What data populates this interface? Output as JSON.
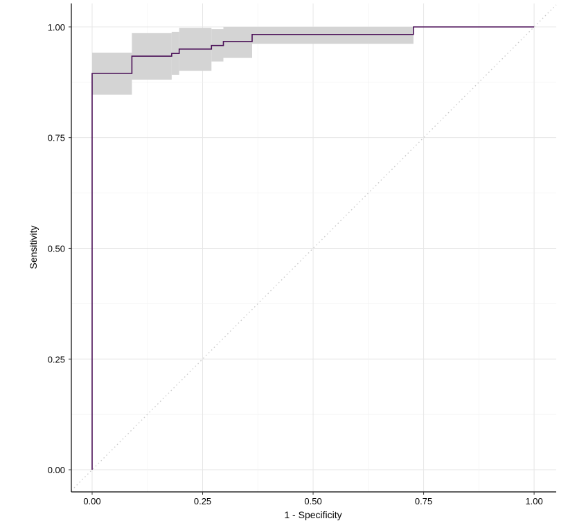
{
  "chart_data": {
    "type": "line",
    "title": "",
    "xlabel": "1 - Specificity",
    "ylabel": "Sensitivity",
    "xlim": [
      -0.047,
      1.05
    ],
    "ylim": [
      -0.05,
      1.053
    ],
    "grid": true,
    "x_ticks": [
      {
        "value": 0,
        "label": "0.00"
      },
      {
        "value": 0.25,
        "label": "0.25"
      },
      {
        "value": 0.5,
        "label": "0.50"
      },
      {
        "value": 0.75,
        "label": "0.75"
      },
      {
        "value": 1,
        "label": "1.00"
      }
    ],
    "y_ticks": [
      {
        "value": 0,
        "label": "0.00"
      },
      {
        "value": 0.25,
        "label": "0.25"
      },
      {
        "value": 0.5,
        "label": "0.50"
      },
      {
        "value": 0.75,
        "label": "0.75"
      },
      {
        "value": 1,
        "label": "1.00"
      }
    ],
    "roc_steps": [
      {
        "x": 0,
        "y": 0
      },
      {
        "x": 0,
        "y": 0.895
      },
      {
        "x": 0.09,
        "y": 0.934
      },
      {
        "x": 0.18,
        "y": 0.94
      },
      {
        "x": 0.197,
        "y": 0.95
      },
      {
        "x": 0.27,
        "y": 0.958
      },
      {
        "x": 0.297,
        "y": 0.967
      },
      {
        "x": 0.362,
        "y": 0.983
      },
      {
        "x": 0.727,
        "y": 1.0
      },
      {
        "x": 1.0,
        "y": 1.0
      }
    ],
    "ci_band": [
      {
        "x0": 0,
        "x1": 0.09,
        "lo": 0.847,
        "hi": 0.942
      },
      {
        "x0": 0.09,
        "x1": 0.18,
        "lo": 0.881,
        "hi": 0.986
      },
      {
        "x0": 0.18,
        "x1": 0.197,
        "lo": 0.892,
        "hi": 0.989
      },
      {
        "x0": 0.197,
        "x1": 0.27,
        "lo": 0.901,
        "hi": 0.998
      },
      {
        "x0": 0.27,
        "x1": 0.297,
        "lo": 0.922,
        "hi": 0.995
      },
      {
        "x0": 0.297,
        "x1": 0.362,
        "lo": 0.93,
        "hi": 1.0
      },
      {
        "x0": 0.362,
        "x1": 0.727,
        "lo": 0.962,
        "hi": 1.0
      }
    ],
    "reference_line": {
      "from": [
        0,
        0
      ],
      "to": [
        1,
        1
      ],
      "style": "dotted"
    },
    "colors": {
      "roc": "#4a0f57",
      "band": "#d4d4d4",
      "grid": "#ebebeb",
      "reference": "#c8c8c8"
    }
  }
}
